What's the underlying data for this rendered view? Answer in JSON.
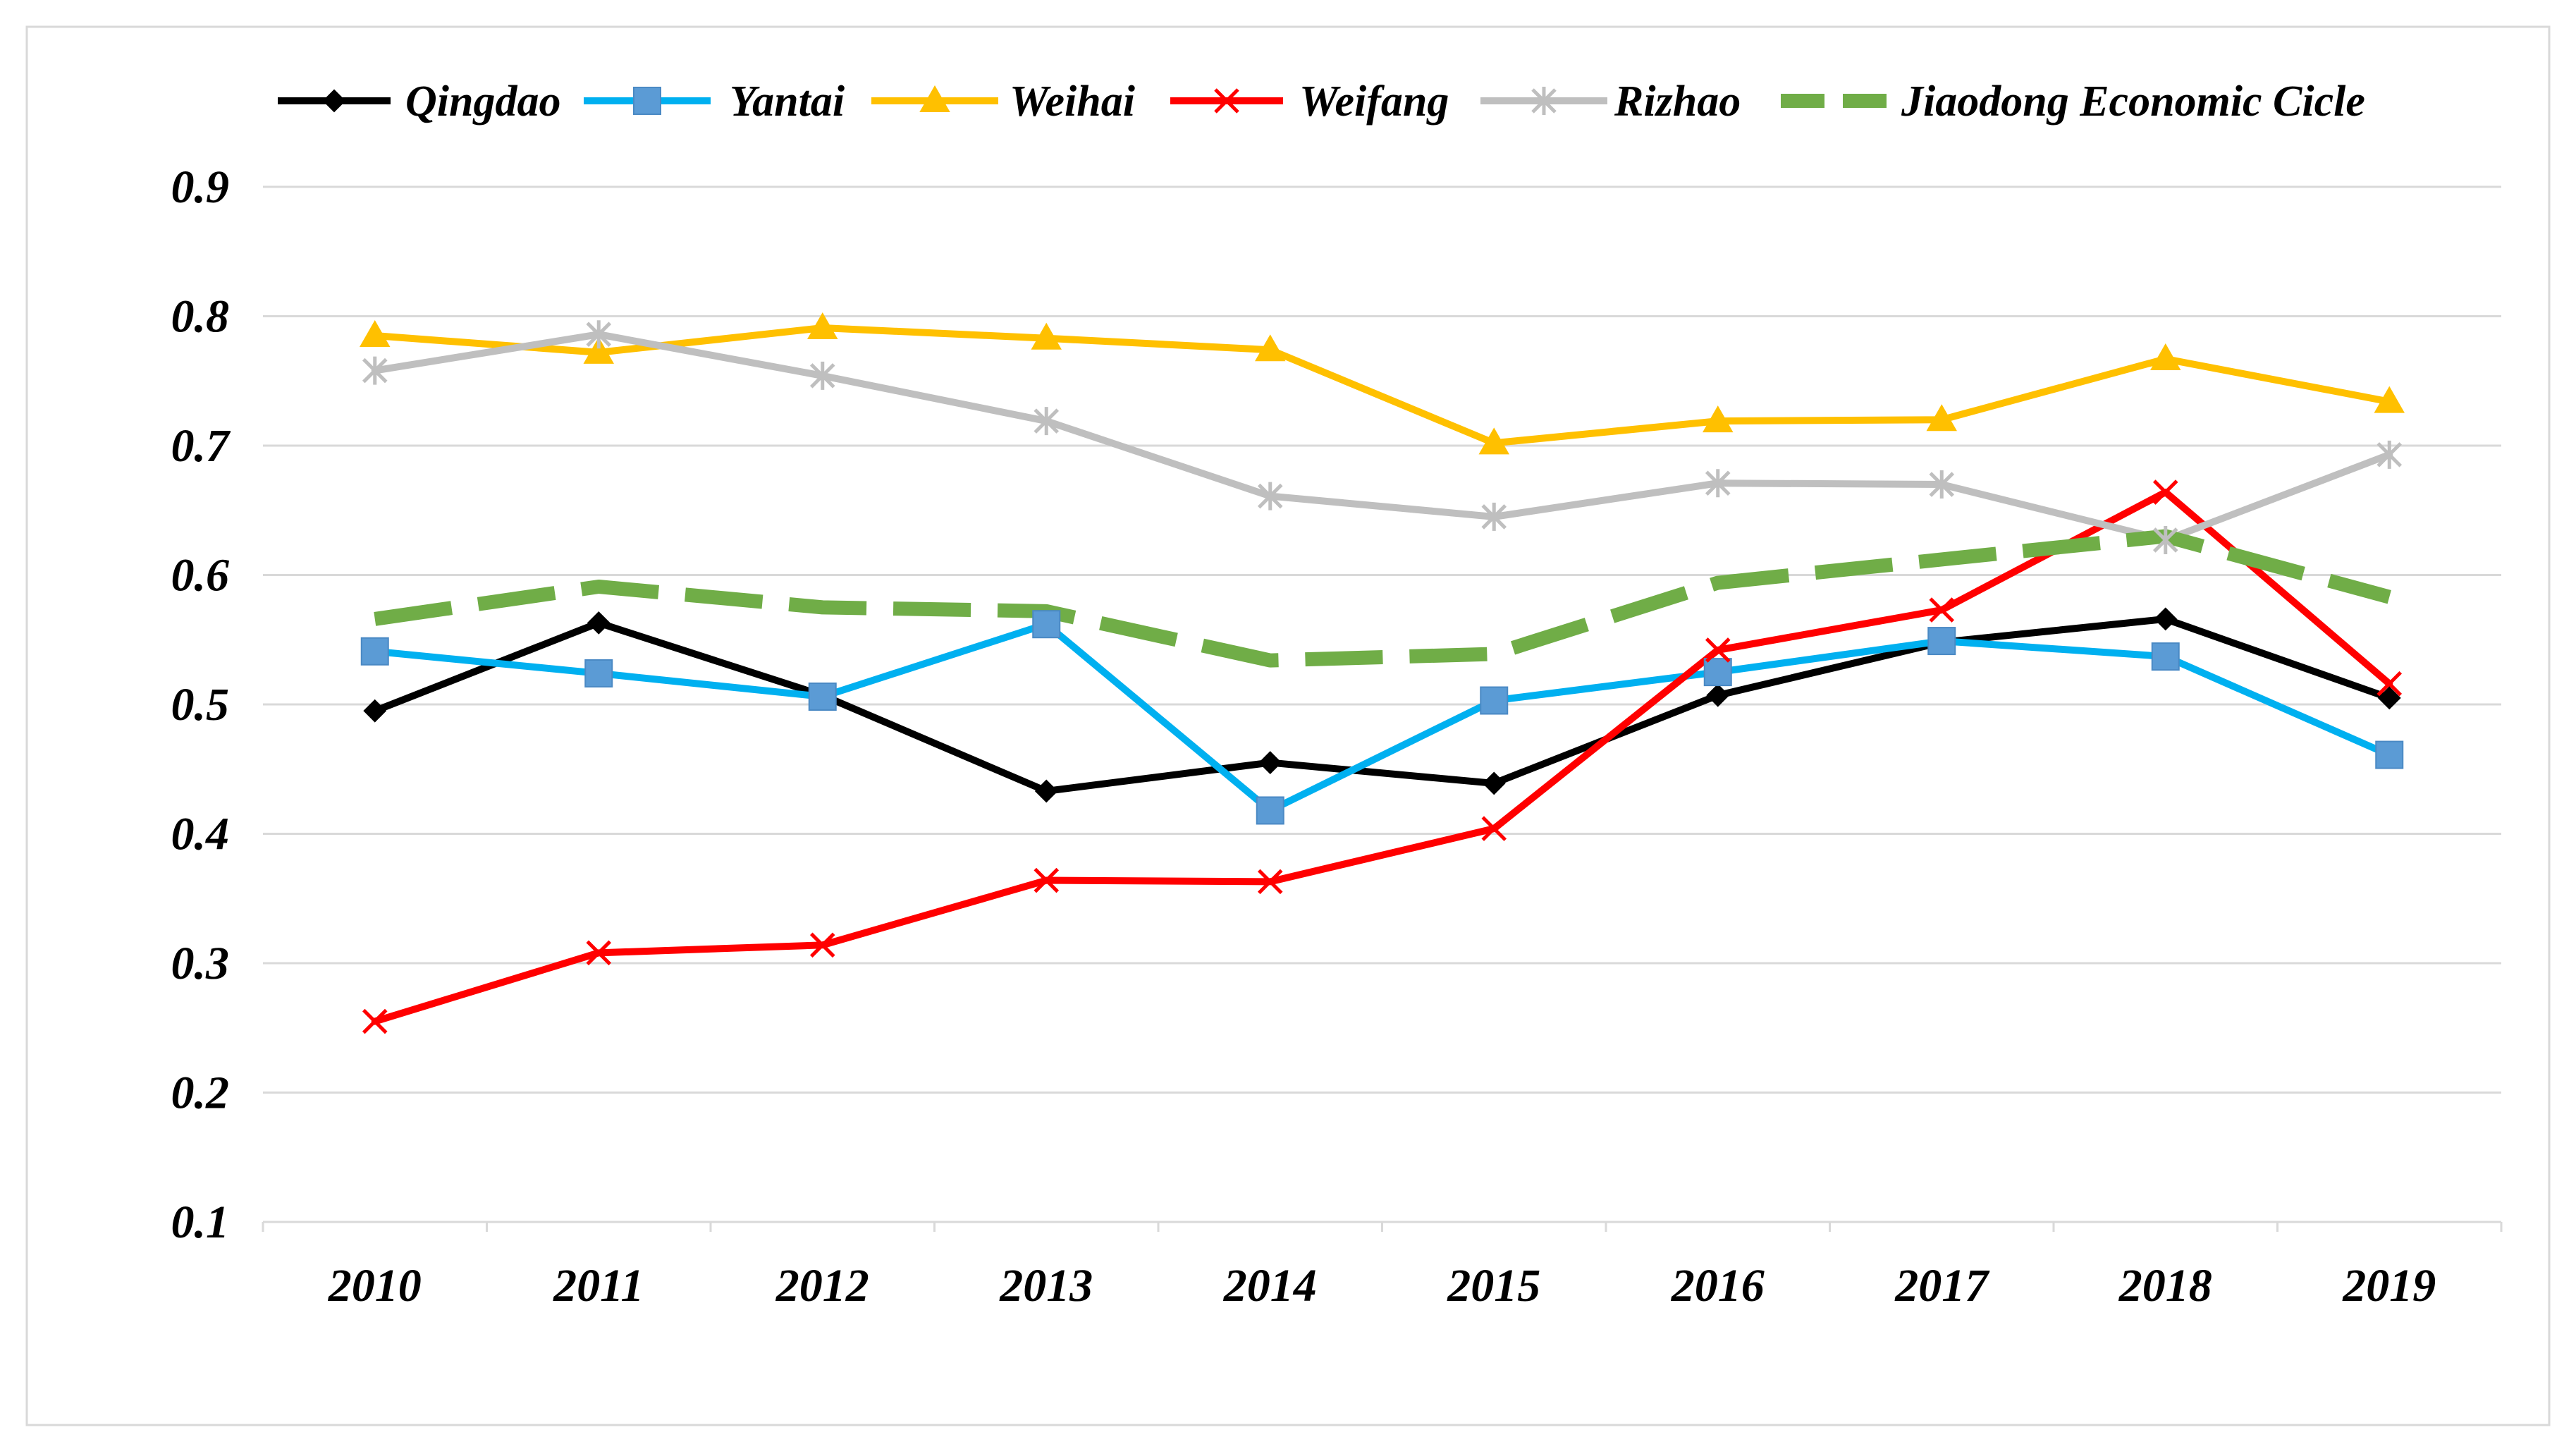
{
  "chart_data": {
    "type": "line",
    "title": "",
    "xlabel": "",
    "ylabel": "",
    "categories": [
      "2010",
      "2011",
      "2012",
      "2013",
      "2014",
      "2015",
      "2016",
      "2017",
      "2018",
      "2019"
    ],
    "ylim": [
      0.1,
      0.9
    ],
    "y_ticks": [
      "0.1",
      "0.2",
      "0.3",
      "0.4",
      "0.5",
      "0.6",
      "0.7",
      "0.8",
      "0.9"
    ],
    "grid": true,
    "legend_position": "top",
    "series": [
      {
        "key": "qingdao",
        "name": "Qingdao",
        "color": "#000000",
        "marker": "diamond",
        "dash": "solid",
        "values": [
          0.495,
          0.563,
          0.507,
          0.433,
          0.455,
          0.439,
          0.507,
          0.548,
          0.566,
          0.505
        ]
      },
      {
        "key": "yantai",
        "name": "Yantai",
        "color": "#00B0F0",
        "marker_color": "#5B9BD5",
        "marker": "square",
        "dash": "solid",
        "values": [
          0.541,
          0.524,
          0.506,
          0.562,
          0.418,
          0.503,
          0.525,
          0.549,
          0.537,
          0.461
        ]
      },
      {
        "key": "weihai",
        "name": "Weihai",
        "color": "#FFC000",
        "marker": "triangle",
        "dash": "solid",
        "values": [
          0.785,
          0.772,
          0.791,
          0.783,
          0.774,
          0.702,
          0.719,
          0.72,
          0.767,
          0.734
        ]
      },
      {
        "key": "weifang",
        "name": "Weifang",
        "color": "#FF0000",
        "marker": "x",
        "dash": "solid",
        "values": [
          0.255,
          0.308,
          0.314,
          0.364,
          0.363,
          0.404,
          0.542,
          0.573,
          0.664,
          0.516
        ]
      },
      {
        "key": "rizhao",
        "name": "Rizhao",
        "color": "#BFBFBF",
        "marker": "star",
        "dash": "solid",
        "values": [
          0.758,
          0.786,
          0.754,
          0.719,
          0.661,
          0.645,
          0.671,
          0.67,
          0.627,
          0.693
        ]
      },
      {
        "key": "jiaodong",
        "name": "Jiaodong Economic Cicle",
        "color": "#70AD47",
        "marker": "none",
        "dash": "dashed",
        "values": [
          0.566,
          0.591,
          0.575,
          0.572,
          0.534,
          0.539,
          0.594,
          0.612,
          0.63,
          0.583
        ]
      }
    ]
  }
}
